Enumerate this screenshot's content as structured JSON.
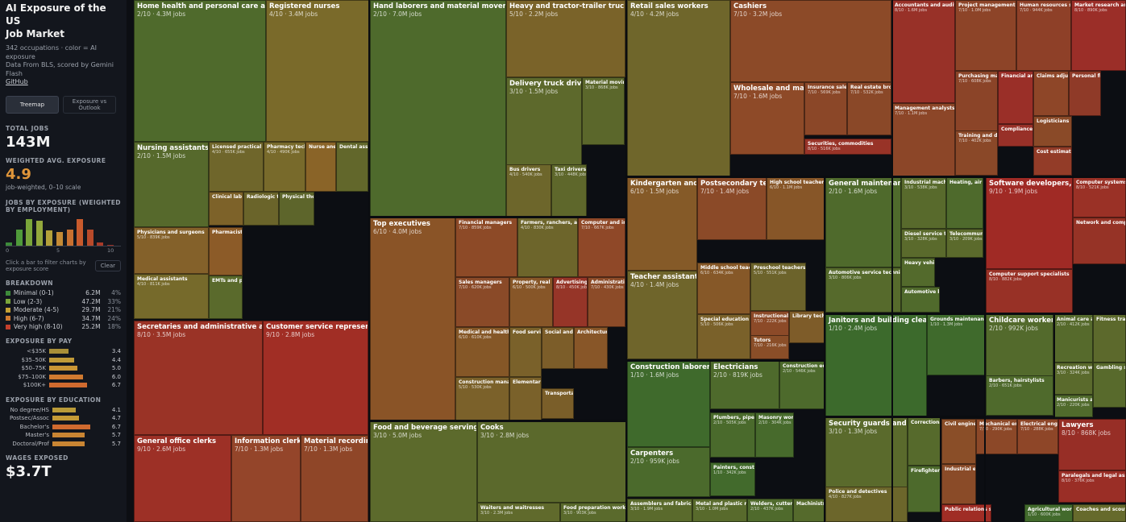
{
  "sidebar": {
    "title_line1": "AI Exposure of the US",
    "title_line2": "Job Market",
    "subtitle": "342 occupations · color = AI exposure",
    "data_source": "Data From BLS, scored by Gemini Flash",
    "github": "GitHub",
    "views": [
      "Treemap",
      "Exposure vs Outlook"
    ],
    "total_jobs_label": "TOTAL JOBS",
    "total_jobs": "143M",
    "weighted_label": "WEIGHTED AVG. EXPOSURE",
    "weighted_value": "4.9",
    "weighted_note": "job-weighted, 0–10 scale",
    "histogram_label": "JOBS BY EXPOSURE (WEIGHTED BY EMPLOYMENT)",
    "histogram": [
      {
        "score": 0,
        "level": 0.12,
        "color": "#3d8a3a"
      },
      {
        "score": 1,
        "level": 0.6,
        "color": "#4f9a3a"
      },
      {
        "score": 2,
        "level": 0.98,
        "color": "#7aa53a"
      },
      {
        "score": 3,
        "level": 0.92,
        "color": "#93a83c"
      },
      {
        "score": 4,
        "level": 0.55,
        "color": "#b3a03a"
      },
      {
        "score": 5,
        "level": 0.5,
        "color": "#c48a35"
      },
      {
        "score": 6,
        "level": 0.6,
        "color": "#c97030"
      },
      {
        "score": 7,
        "level": 0.98,
        "color": "#c85a2c"
      },
      {
        "score": 8,
        "level": 0.58,
        "color": "#b84a2a"
      },
      {
        "score": 9,
        "level": 0.12,
        "color": "#a83a28"
      },
      {
        "score": 10,
        "level": 0.04,
        "color": "#9a2f25"
      }
    ],
    "hticks": [
      "0",
      "5",
      "10"
    ],
    "filter_note": "Click a bar to filter charts by exposure score",
    "clear_label": "Clear",
    "breakdown_label": "BREAKDOWN",
    "breakdown": [
      {
        "name": "Minimal (0-1)",
        "value": "6.2M",
        "pct": "4%",
        "color": "#3d8a3a"
      },
      {
        "name": "Low (2-3)",
        "value": "47.2M",
        "pct": "33%",
        "color": "#7aa53a"
      },
      {
        "name": "Moderate (4-5)",
        "value": "29.7M",
        "pct": "21%",
        "color": "#c4a035"
      },
      {
        "name": "High (6-7)",
        "value": "34.7M",
        "pct": "24%",
        "color": "#d07a30"
      },
      {
        "name": "Very high (8-10)",
        "value": "25.2M",
        "pct": "18%",
        "color": "#c43f2c"
      }
    ],
    "pay_label": "EXPOSURE BY PAY",
    "pay": [
      {
        "label": "<$35K",
        "value": "3.4",
        "level": 0.34,
        "color": "#a98f38"
      },
      {
        "label": "$35–50K",
        "value": "4.4",
        "level": 0.44,
        "color": "#c09a38"
      },
      {
        "label": "$50–75K",
        "value": "5.0",
        "level": 0.5,
        "color": "#c99535"
      },
      {
        "label": "$75–100K",
        "value": "6.0",
        "level": 0.6,
        "color": "#d07a30"
      },
      {
        "label": "$100K+",
        "value": "6.7",
        "level": 0.67,
        "color": "#d06a2f"
      }
    ],
    "edu_label": "EXPOSURE BY EDUCATION",
    "edu": [
      {
        "label": "No degree/HS",
        "value": "4.1",
        "level": 0.41,
        "color": "#b99a38"
      },
      {
        "label": "Postsec/Assoc",
        "value": "4.7",
        "level": 0.47,
        "color": "#c49a36"
      },
      {
        "label": "Bachelor's",
        "value": "6.7",
        "level": 0.67,
        "color": "#d06a2f"
      },
      {
        "label": "Master's",
        "value": "5.7",
        "level": 0.57,
        "color": "#c98533"
      },
      {
        "label": "Doctoral/Prof",
        "value": "5.7",
        "level": 0.57,
        "color": "#c98533"
      }
    ],
    "wages_label": "WAGES EXPOSED",
    "wages_value": "$3.7T"
  },
  "tiles": [
    {
      "name": "Home health and personal care aides",
      "meta": "2/10 · 4.3M jobs",
      "color": "#4f6a2c"
    },
    {
      "name": "Registered nurses",
      "meta": "4/10 · 3.4M jobs",
      "color": "#7a6a2a"
    },
    {
      "name": "Nursing assistants and orderlies",
      "meta": "2/10 · 1.5M jobs",
      "color": "#56692c"
    },
    {
      "name": "Licensed practical and licensed vocational nurses",
      "meta": "4/10 · 655K jobs",
      "color": "#6f662b"
    },
    {
      "name": "Pharmacy technicians",
      "meta": "4/10 · 490K jobs",
      "color": "#786a2b"
    },
    {
      "name": "Nurse anesthetists",
      "meta": "",
      "color": "#8a6428"
    },
    {
      "name": "Dental assistants",
      "meta": "",
      "color": "#62672b"
    },
    {
      "name": "Clinical lab technologists",
      "meta": "",
      "color": "#7d6229"
    },
    {
      "name": "Radiologic technologists",
      "meta": "",
      "color": "#6a642a"
    },
    {
      "name": "Physical therapists",
      "meta": "",
      "color": "#5d652b"
    },
    {
      "name": "Physicians and surgeons",
      "meta": "5/10 · 839K jobs",
      "color": "#84612a"
    },
    {
      "name": "Pharmacists",
      "meta": "",
      "color": "#8c5b28"
    },
    {
      "name": "Medical assistants",
      "meta": "4/10 · 811K jobs",
      "color": "#766a2b"
    },
    {
      "name": "EMTs and paramedics",
      "meta": "",
      "color": "#5a6a2c"
    },
    {
      "name": "Secretaries and administrative assistants",
      "meta": "8/10 · 3.5M jobs",
      "color": "#9a3326"
    },
    {
      "name": "Customer service representatives",
      "meta": "9/10 · 2.8M jobs",
      "color": "#a12e25"
    },
    {
      "name": "General office clerks",
      "meta": "9/10 · 2.6M jobs",
      "color": "#9d3026"
    },
    {
      "name": "Information clerks",
      "meta": "7/10 · 1.3M jobs",
      "color": "#94452a"
    },
    {
      "name": "Material recording clerks",
      "meta": "7/10 · 1.3M jobs",
      "color": "#8f4628"
    },
    {
      "name": "Hand laborers and material movers",
      "meta": "2/10 · 7.0M jobs",
      "color": "#4e6a2c"
    },
    {
      "name": "Heavy and tractor-trailer truck drivers",
      "meta": "5/10 · 2.2M jobs",
      "color": "#7a6329"
    },
    {
      "name": "Delivery truck drivers",
      "meta": "3/10 · 1.5M jobs",
      "color": "#5d692c"
    },
    {
      "name": "Material moving machine operators",
      "meta": "3/10 · 868K jobs",
      "color": "#5b672b"
    },
    {
      "name": "Bus drivers",
      "meta": "4/10 · 540K jobs",
      "color": "#6d662b"
    },
    {
      "name": "Taxi drivers, shuttle",
      "meta": "3/10 · 448K jobs",
      "color": "#5e672b"
    },
    {
      "name": "Top executives",
      "meta": "6/10 · 4.0M jobs",
      "color": "#8a5427"
    },
    {
      "name": "Financial managers",
      "meta": "7/10 · 859K jobs",
      "color": "#8d4a27"
    },
    {
      "name": "Farmers, ranchers, and other agricultural managers",
      "meta": "4/10 · 830K jobs",
      "color": "#6d652b"
    },
    {
      "name": "Computer and information systems managers",
      "meta": "7/10 · 667K jobs",
      "color": "#8f4828"
    },
    {
      "name": "Sales managers",
      "meta": "7/10 · 620K jobs",
      "color": "#8a4a28"
    },
    {
      "name": "Property, real estate",
      "meta": "6/10 · 500K jobs",
      "color": "#875628"
    },
    {
      "name": "Advertising, promotions",
      "meta": "8/10 · 450K jobs",
      "color": "#963528"
    },
    {
      "name": "Administrative services managers",
      "meta": "7/10 · 430K jobs",
      "color": "#8c4b28"
    },
    {
      "name": "Medical and health services managers",
      "meta": "6/10 · 610K jobs",
      "color": "#855727"
    },
    {
      "name": "Food service managers",
      "meta": "",
      "color": "#7a612a"
    },
    {
      "name": "Construction managers",
      "meta": "5/10 · 530K jobs",
      "color": "#7b612a"
    },
    {
      "name": "Elementary",
      "meta": "",
      "color": "#7a612a"
    },
    {
      "name": "Social and community",
      "meta": "",
      "color": "#7c5d29"
    },
    {
      "name": "Architectural",
      "meta": "",
      "color": "#885628"
    },
    {
      "name": "Transportation",
      "meta": "",
      "color": "#7a5e29"
    },
    {
      "name": "Food and beverage serving and related workers",
      "meta": "3/10 · 5.0M jobs",
      "color": "#5c6a2c"
    },
    {
      "name": "Cooks",
      "meta": "3/10 · 2.8M jobs",
      "color": "#5b692c"
    },
    {
      "name": "Waiters and waitresses",
      "meta": "3/10 · 2.3M jobs",
      "color": "#606a2c"
    },
    {
      "name": "Food preparation workers",
      "meta": "3/10 · 903K jobs",
      "color": "#5a6a2c"
    },
    {
      "name": "Retail sales workers",
      "meta": "4/10 · 4.2M jobs",
      "color": "#6f662b"
    },
    {
      "name": "Cashiers",
      "meta": "7/10 · 3.2M jobs",
      "color": "#8c4a28"
    },
    {
      "name": "Wholesale and manufacturing sales",
      "meta": "7/10 · 1.6M jobs",
      "color": "#8e4a28"
    },
    {
      "name": "Insurance sales agents",
      "meta": "7/10 · 569K jobs",
      "color": "#8b4728"
    },
    {
      "name": "Real estate brokers",
      "meta": "7/10 · 532K jobs",
      "color": "#8a4828"
    },
    {
      "name": "Securities, commodities",
      "meta": "8/10 · 516K jobs",
      "color": "#983327"
    },
    {
      "name": "Kindergarten and elementary school teachers",
      "meta": "6/10 · 1.5M jobs",
      "color": "#855a28"
    },
    {
      "name": "Postsecondary teachers",
      "meta": "7/10 · 1.4M jobs",
      "color": "#8b4a28"
    },
    {
      "name": "High school teachers",
      "meta": "6/10 · 1.1M jobs",
      "color": "#875628"
    },
    {
      "name": "Teacher assistants",
      "meta": "4/10 · 1.4M jobs",
      "color": "#6f652b"
    },
    {
      "name": "Middle school teachers",
      "meta": "6/10 · 634K jobs",
      "color": "#865828"
    },
    {
      "name": "Preschool teachers",
      "meta": "5/10 · 551K jobs",
      "color": "#6c632b"
    },
    {
      "name": "Special education teachers",
      "meta": "5/10 · 506K jobs",
      "color": "#7a612a"
    },
    {
      "name": "Instructional coordinators",
      "meta": "7/10 · 222K jobs",
      "color": "#8c4a28"
    },
    {
      "name": "Library technicians",
      "meta": "",
      "color": "#7e5c29"
    },
    {
      "name": "Tutors",
      "meta": "7/10 · 216K jobs",
      "color": "#8a4e28"
    },
    {
      "name": "General maintenance and repair workers",
      "meta": "2/10 · 1.6M jobs",
      "color": "#4f6a2c"
    },
    {
      "name": "Industrial machinery mechanics",
      "meta": "3/10 · 538K jobs",
      "color": "#586a2c"
    },
    {
      "name": "Heating, air conditioning",
      "meta": "",
      "color": "#4e6a2c"
    },
    {
      "name": "Diesel service technicians",
      "meta": "3/10 · 328K jobs",
      "color": "#5a6a2c"
    },
    {
      "name": "Telecommunications",
      "meta": "3/10 · 209K jobs",
      "color": "#5b6a2c"
    },
    {
      "name": "Heavy vehicle",
      "meta": "",
      "color": "#536a2c"
    },
    {
      "name": "Automotive service technicians",
      "meta": "3/10 · 806K jobs",
      "color": "#566a2c"
    },
    {
      "name": "Automotive body",
      "meta": "",
      "color": "#506a2c"
    },
    {
      "name": "Construction laborers",
      "meta": "1/10 · 1.6M jobs",
      "color": "#3f6a2c"
    },
    {
      "name": "Electricians",
      "meta": "2/10 · 819K jobs",
      "color": "#4e6a2c"
    },
    {
      "name": "Construction equipment operators",
      "meta": "2/10 · 546K jobs",
      "color": "#4d6a2c"
    },
    {
      "name": "Plumbers, pipefitters",
      "meta": "2/10 · 505K jobs",
      "color": "#4a6a2c"
    },
    {
      "name": "Masonry workers",
      "meta": "2/10 · 304K jobs",
      "color": "#476a2c"
    },
    {
      "name": "Carpenters",
      "meta": "2/10 · 959K jobs",
      "color": "#4b6a2c"
    },
    {
      "name": "Painters, construction",
      "meta": "1/10 · 342K jobs",
      "color": "#426a2c"
    },
    {
      "name": "Assemblers and fabricators",
      "meta": "3/10 · 1.9M jobs",
      "color": "#5a6a2c"
    },
    {
      "name": "Metal and plastic machine workers",
      "meta": "3/10 · 1.0M jobs",
      "color": "#586a2c"
    },
    {
      "name": "Welders, cutters",
      "meta": "2/10 · 437K jobs",
      "color": "#4f6a2c"
    },
    {
      "name": "Machinists",
      "meta": "",
      "color": "#556a2c"
    },
    {
      "name": "Janitors and building cleaners",
      "meta": "1/10 · 2.4M jobs",
      "color": "#3c6a2c"
    },
    {
      "name": "Grounds maintenance workers",
      "meta": "1/10 · 1.3M jobs",
      "color": "#3f6a2c"
    },
    {
      "name": "Accountants and auditors",
      "meta": "8/10 · 1.6M jobs",
      "color": "#983128"
    },
    {
      "name": "Project management specialists",
      "meta": "7/10 · 1.0M jobs",
      "color": "#8d4428"
    },
    {
      "name": "Human resources specialists",
      "meta": "7/10 · 944K jobs",
      "color": "#8e4028"
    },
    {
      "name": "Market research analysts",
      "meta": "8/10 · 890K jobs",
      "color": "#9b2e28"
    },
    {
      "name": "Management analysts",
      "meta": "7/10 · 1.1M jobs",
      "color": "#8c4628"
    },
    {
      "name": "Purchasing managers",
      "meta": "7/10 · 608K jobs",
      "color": "#8b4428"
    },
    {
      "name": "Financial analysts",
      "meta": "",
      "color": "#9a2f28"
    },
    {
      "name": "Claims adjusters",
      "meta": "",
      "color": "#8e4628"
    },
    {
      "name": "Personal financial advisors",
      "meta": "",
      "color": "#8f3a28"
    },
    {
      "name": "Training and development",
      "meta": "7/10 · 402K jobs",
      "color": "#8a4828"
    },
    {
      "name": "Compliance officers",
      "meta": "",
      "color": "#983028"
    },
    {
      "name": "Logisticians",
      "meta": "",
      "color": "#8a4a28"
    },
    {
      "name": "Cost estimators",
      "meta": "",
      "color": "#933c28"
    },
    {
      "name": "Software developers, QA analysts",
      "meta": "9/10 · 1.9M jobs",
      "color": "#a02a25"
    },
    {
      "name": "Computer systems analysts",
      "meta": "8/10 · 521K jobs",
      "color": "#9a3126"
    },
    {
      "name": "Network and computer systems administrators",
      "meta": "",
      "color": "#963326"
    },
    {
      "name": "Computer support specialists",
      "meta": "8/10 · 882K jobs",
      "color": "#983126"
    },
    {
      "name": "Childcare workers",
      "meta": "2/10 · 992K jobs",
      "color": "#536a2c"
    },
    {
      "name": "Animal care and service workers",
      "meta": "2/10 · 412K jobs",
      "color": "#566a2c"
    },
    {
      "name": "Fitness trainers",
      "meta": "",
      "color": "#5c692c"
    },
    {
      "name": "Recreation workers",
      "meta": "3/10 · 324K jobs",
      "color": "#5a6a2c"
    },
    {
      "name": "Gambling services",
      "meta": "",
      "color": "#586a2c"
    },
    {
      "name": "Barbers, hairstylists",
      "meta": "2/10 · 651K jobs",
      "color": "#4f6a2c"
    },
    {
      "name": "Manicurists and pedicurists",
      "meta": "2/10 · 220K jobs",
      "color": "#506a2c"
    },
    {
      "name": "Security guards and gambling surveillance",
      "meta": "3/10 · 1.3M jobs",
      "color": "#5a6a2c"
    },
    {
      "name": "Correctional officers",
      "meta": "",
      "color": "#566a2c"
    },
    {
      "name": "Firefighters",
      "meta": "",
      "color": "#4d6a2c"
    },
    {
      "name": "Police and detectives",
      "meta": "4/10 · 827K jobs",
      "color": "#6c662b"
    },
    {
      "name": "Civil engineers",
      "meta": "",
      "color": "#8a4e28"
    },
    {
      "name": "Mechanical engineers",
      "meta": "7/10 · 290K jobs",
      "color": "#8c4828"
    },
    {
      "name": "Electrical engineers",
      "meta": "7/10 · 288K jobs",
      "color": "#8e4628"
    },
    {
      "name": "Industrial engineers",
      "meta": "",
      "color": "#8a4b28"
    },
    {
      "name": "Lawyers",
      "meta": "8/10 · 868K jobs",
      "color": "#972e26"
    },
    {
      "name": "Paralegals and legal assistants",
      "meta": "8/10 · 376K jobs",
      "color": "#9a2e26"
    },
    {
      "name": "Public relations specialists",
      "meta": "",
      "color": "#a02d25"
    },
    {
      "name": "Agricultural workers",
      "meta": "1/10 · 600K jobs",
      "color": "#426a2c"
    },
    {
      "name": "Coaches and scouts",
      "meta": "",
      "color": "#666a2c"
    }
  ]
}
